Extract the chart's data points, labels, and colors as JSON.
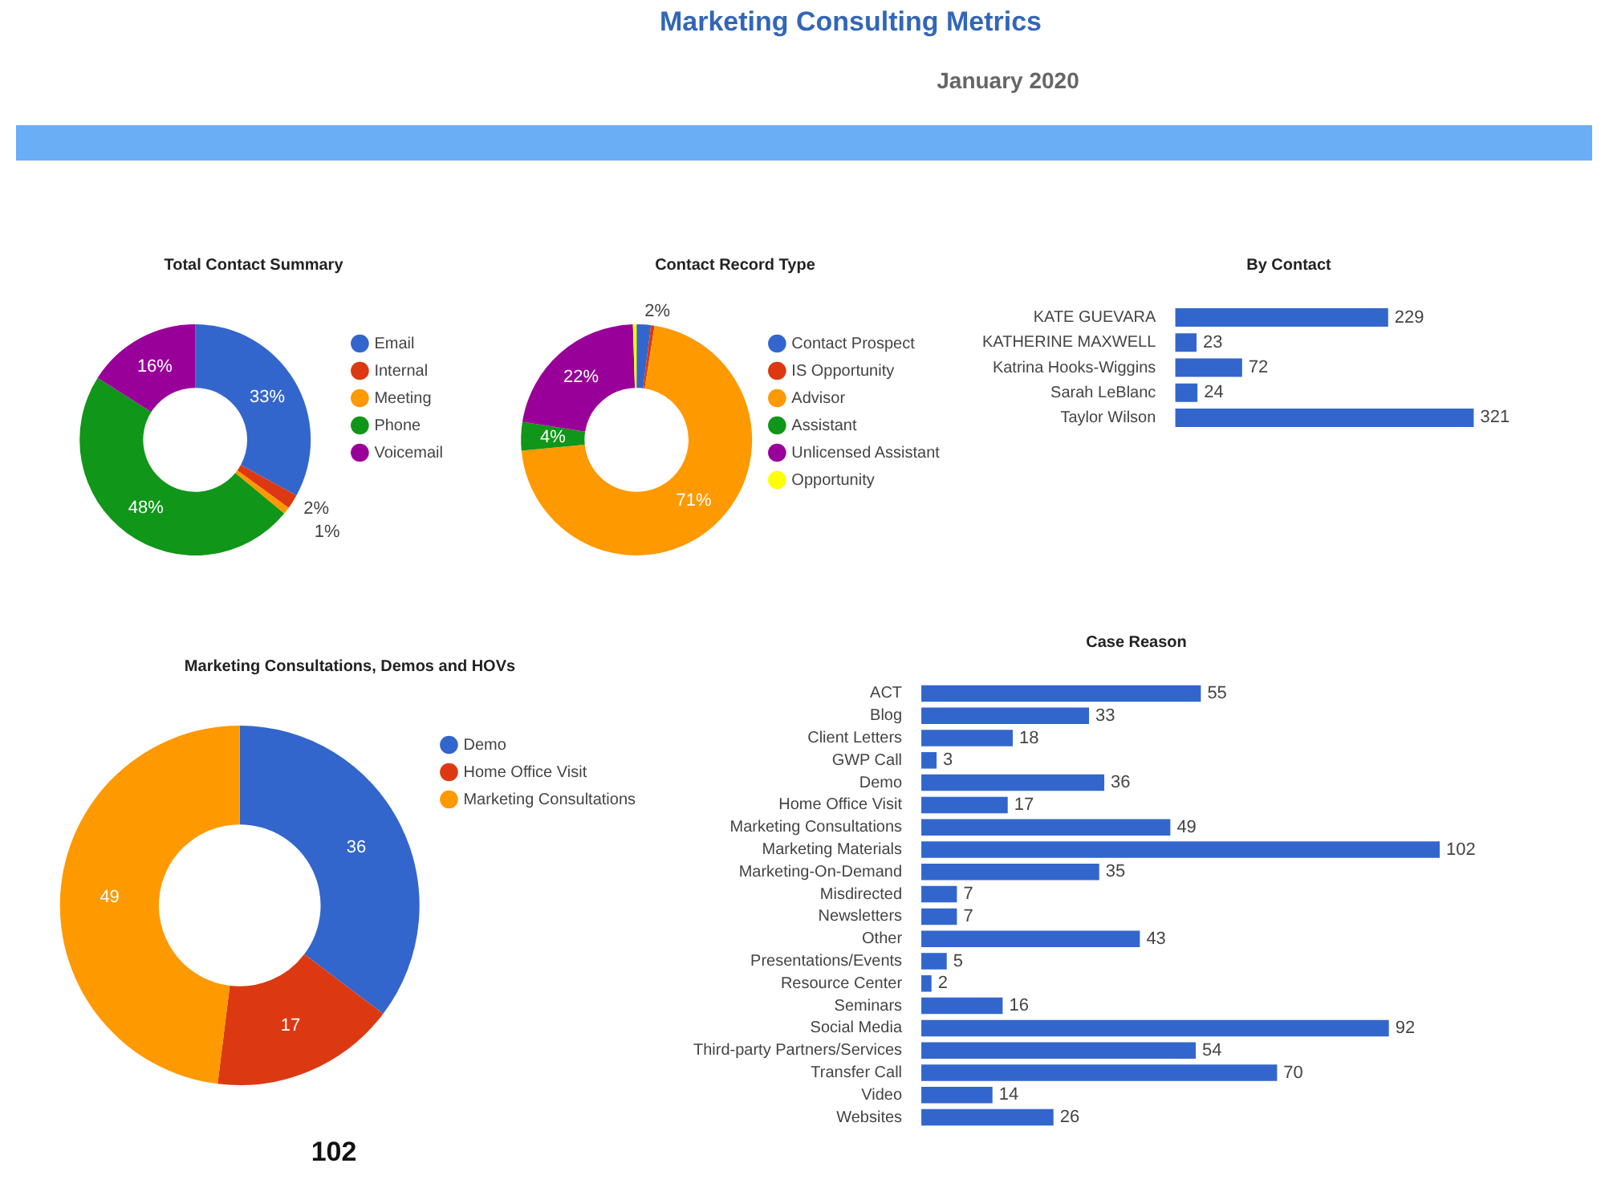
{
  "chart_data": [
    {
      "type": "other",
      "title": "Marketing Consulting Metrics",
      "subtitle": "January 2020"
    },
    {
      "type": "donut",
      "title": "Total Contact Summary",
      "categories": [
        "Email",
        "Internal",
        "Meeting",
        "Phone",
        "Voicemail"
      ],
      "values": [
        33,
        2,
        1,
        48,
        16
      ],
      "colors": [
        "#3366cc",
        "#dc3912",
        "#ff9900",
        "#109618",
        "#990099"
      ],
      "value_labels": [
        "33%",
        "2%",
        "1%",
        "48%",
        "16%"
      ],
      "legend": "right"
    },
    {
      "type": "donut",
      "title": "Contact Record Type",
      "categories": [
        "Contact Prospect",
        "IS Opportunity",
        "Advisor",
        "Assistant",
        "Unlicensed Assistant",
        "Opportunity"
      ],
      "values": [
        2,
        0.5,
        71,
        4,
        22,
        0.5
      ],
      "colors": [
        "#3366cc",
        "#dc3912",
        "#ff9900",
        "#109618",
        "#990099",
        "#ffff00"
      ],
      "value_labels": [
        "2%",
        null,
        "71%",
        "4%",
        "22%",
        null
      ],
      "legend": "right"
    },
    {
      "type": "bar",
      "orientation": "horizontal",
      "title": "By Contact",
      "categories": [
        "KATE GUEVARA",
        "KATHERINE MAXWELL",
        "Katrina Hooks-Wiggins",
        "Sarah LeBlanc",
        "Taylor Wilson"
      ],
      "values": [
        229,
        23,
        72,
        24,
        321
      ],
      "color": "#3366cc",
      "data_labels": true,
      "tick_labels": "y"
    },
    {
      "type": "donut",
      "title": "Marketing Consultations, Demos and HOVs",
      "categories": [
        "Demo",
        "Home Office Visit",
        "Marketing Consultations"
      ],
      "values": [
        36,
        17,
        49
      ],
      "colors": [
        "#3366cc",
        "#dc3912",
        "#ff9900"
      ],
      "data_labels": true,
      "legend": "right",
      "annotations": [
        "102"
      ]
    },
    {
      "type": "bar",
      "orientation": "horizontal",
      "title": "Case Reason",
      "categories": [
        "ACT",
        "Blog",
        "Client Letters",
        "GWP Call",
        "Demo",
        "Home Office Visit",
        "Marketing Consultations",
        "Marketing Materials",
        "Marketing-On-Demand",
        "Misdirected",
        "Newsletters",
        "Other",
        "Presentations/Events",
        "Resource Center",
        "Seminars",
        "Social Media",
        "Third-party Partners/Services",
        "Transfer Call",
        "Video",
        "Websites"
      ],
      "values": [
        55,
        33,
        18,
        3,
        36,
        17,
        49,
        102,
        35,
        7,
        7,
        43,
        5,
        2,
        16,
        92,
        54,
        70,
        14,
        26
      ],
      "color": "#3366cc",
      "data_labels": true,
      "tick_labels": "y"
    }
  ]
}
